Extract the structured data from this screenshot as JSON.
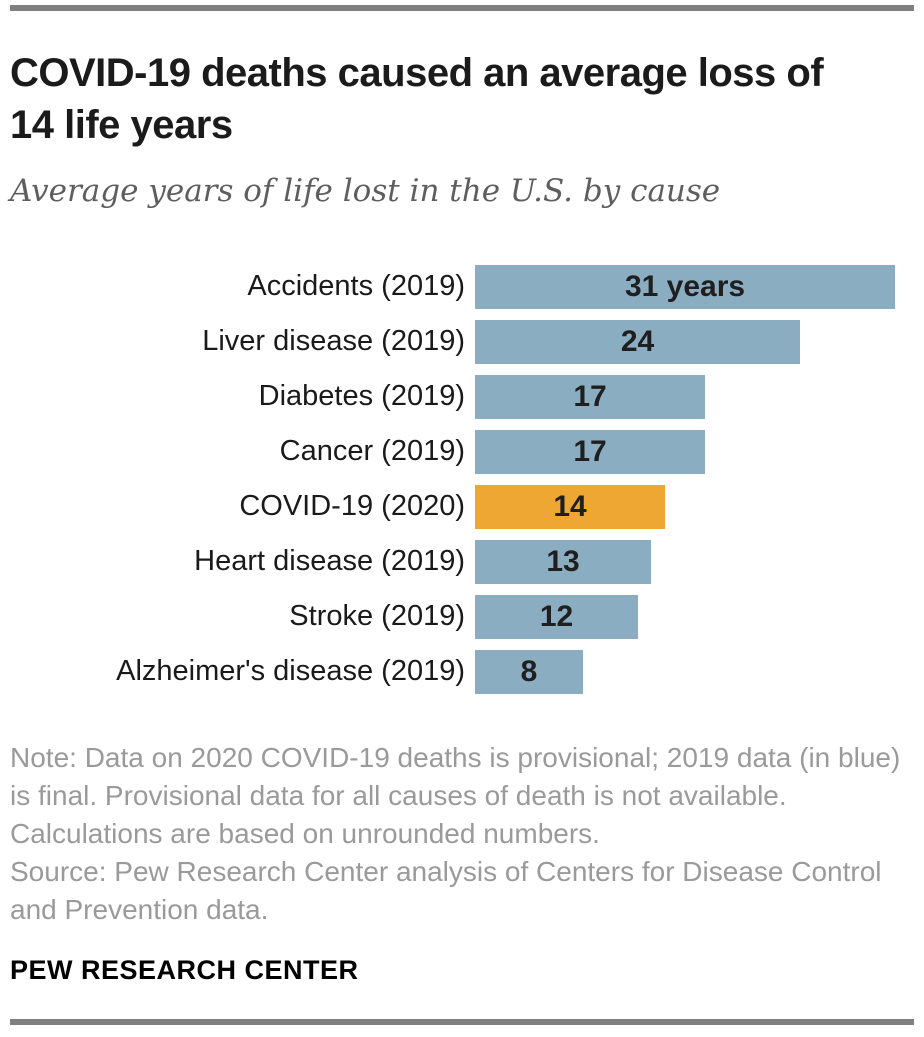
{
  "header": {
    "title": "COVID-19 deaths caused an average loss of 14 life years",
    "subtitle": "Average years of life lost in the U.S. by cause"
  },
  "chart_data": {
    "type": "bar",
    "orientation": "horizontal",
    "title": "COVID-19 deaths caused an average loss of 14 life years",
    "subtitle": "Average years of life lost in the U.S. by cause",
    "xlabel": "",
    "ylabel": "",
    "xlim": [
      0,
      31
    ],
    "grid": false,
    "legend": "none",
    "categories": [
      "Accidents (2019)",
      "Liver disease (2019)",
      "Diabetes (2019)",
      "Cancer (2019)",
      "COVID-19 (2020)",
      "Heart disease (2019)",
      "Stroke (2019)",
      "Alzheimer's disease (2019)"
    ],
    "values": [
      31,
      24,
      17,
      17,
      14,
      13,
      12,
      8
    ],
    "value_labels": [
      "31 years",
      "24",
      "17",
      "17",
      "14",
      "13",
      "12",
      "8"
    ],
    "units": "years",
    "highlight_index": 4,
    "bar_color": "#8badc2",
    "highlight_color": "#efa733"
  },
  "footer": {
    "note": "Note: Data on 2020 COVID-19 deaths is provisional; 2019 data (in blue) is final. Provisional data for all causes of death is not available. Calculations are based on unrounded numbers.",
    "source": "Source: Pew Research Center analysis of Centers for Disease Control and Prevention data.",
    "brand": "PEW RESEARCH CENTER"
  },
  "colors": {
    "rule_gray": "#7f7f7f",
    "title_text": "#1b1b1b",
    "subtitle_text": "#5e5e5e",
    "note_text": "#9a9a9a",
    "bar_blue": "#8badc2",
    "bar_orange": "#efa733"
  }
}
